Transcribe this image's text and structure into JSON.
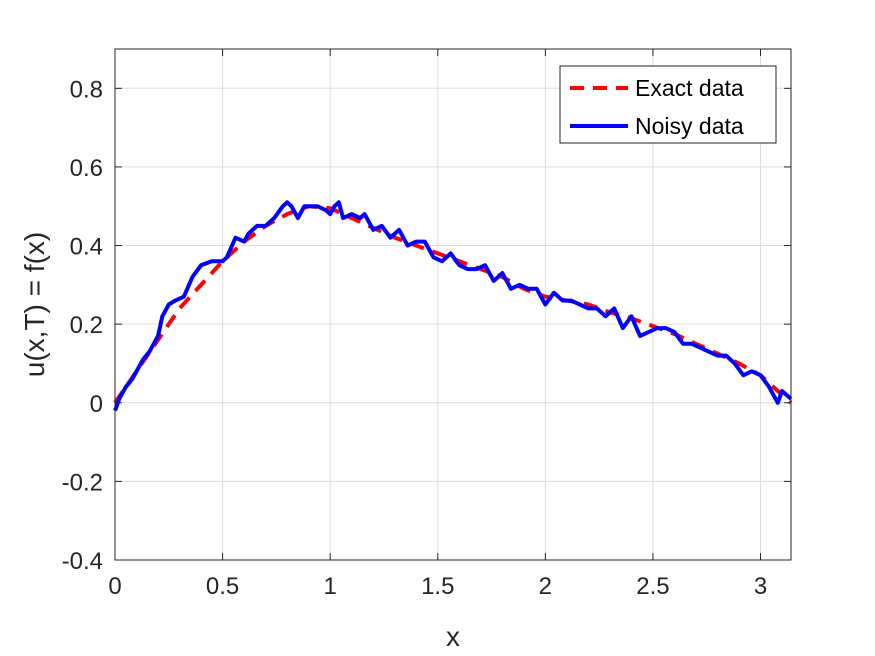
{
  "chart_data": {
    "type": "line",
    "xlabel": "x",
    "ylabel": "u(x,T) = f(x)",
    "xlim": [
      0,
      3.1416
    ],
    "ylim": [
      -0.4,
      0.9
    ],
    "xticks": [
      0,
      0.5,
      1,
      1.5,
      2,
      2.5,
      3
    ],
    "xtick_labels": [
      "0",
      "0.5",
      "1",
      "1.5",
      "2",
      "2.5",
      "3"
    ],
    "yticks": [
      -0.4,
      -0.2,
      0,
      0.2,
      0.4,
      0.6,
      0.8
    ],
    "ytick_labels": [
      "-0.4",
      "-0.2",
      "0",
      "0.2",
      "0.4",
      "0.6",
      "0.8"
    ],
    "grid": true,
    "legend_position": "top-right",
    "colors": {
      "exact": "#ff0000",
      "noisy": "#0000ff",
      "grid": "#dddddd",
      "axis": "#262626"
    },
    "series": [
      {
        "name": "Exact data",
        "style": "dashed",
        "x": [
          0,
          0.05,
          0.1,
          0.15,
          0.2,
          0.25,
          0.3,
          0.4,
          0.5,
          0.6,
          0.7,
          0.8,
          0.9,
          1.0,
          1.1,
          1.2,
          1.3,
          1.4,
          1.5,
          1.6,
          1.7,
          1.8,
          1.9,
          2.0,
          2.1,
          2.2,
          2.3,
          2.4,
          2.5,
          2.6,
          2.7,
          2.8,
          2.9,
          3.0,
          3.1,
          3.1416
        ],
        "y": [
          0,
          0.04,
          0.08,
          0.12,
          0.16,
          0.2,
          0.24,
          0.3,
          0.36,
          0.41,
          0.45,
          0.48,
          0.5,
          0.495,
          0.47,
          0.445,
          0.42,
          0.4,
          0.38,
          0.36,
          0.34,
          0.32,
          0.29,
          0.27,
          0.26,
          0.25,
          0.23,
          0.215,
          0.195,
          0.175,
          0.15,
          0.125,
          0.1,
          0.07,
          0.02,
          0.0
        ]
      },
      {
        "name": "Noisy data",
        "style": "solid",
        "x": [
          0,
          0.02,
          0.05,
          0.08,
          0.1,
          0.13,
          0.16,
          0.2,
          0.22,
          0.25,
          0.28,
          0.32,
          0.36,
          0.4,
          0.45,
          0.5,
          0.52,
          0.56,
          0.6,
          0.62,
          0.66,
          0.7,
          0.74,
          0.78,
          0.8,
          0.82,
          0.85,
          0.88,
          0.9,
          0.94,
          0.98,
          1.0,
          1.02,
          1.04,
          1.06,
          1.1,
          1.14,
          1.16,
          1.2,
          1.24,
          1.28,
          1.32,
          1.36,
          1.4,
          1.44,
          1.48,
          1.52,
          1.56,
          1.6,
          1.64,
          1.68,
          1.72,
          1.76,
          1.8,
          1.84,
          1.88,
          1.92,
          1.96,
          2.0,
          2.04,
          2.08,
          2.12,
          2.16,
          2.2,
          2.24,
          2.28,
          2.32,
          2.36,
          2.4,
          2.44,
          2.48,
          2.52,
          2.56,
          2.6,
          2.64,
          2.68,
          2.72,
          2.76,
          2.8,
          2.84,
          2.88,
          2.92,
          2.96,
          3.0,
          3.04,
          3.06,
          3.08,
          3.1,
          3.1416
        ],
        "y": [
          -0.02,
          0.01,
          0.04,
          0.06,
          0.08,
          0.11,
          0.13,
          0.17,
          0.22,
          0.25,
          0.26,
          0.27,
          0.32,
          0.35,
          0.36,
          0.36,
          0.37,
          0.42,
          0.41,
          0.43,
          0.45,
          0.45,
          0.47,
          0.5,
          0.51,
          0.5,
          0.47,
          0.5,
          0.5,
          0.5,
          0.49,
          0.48,
          0.5,
          0.51,
          0.47,
          0.48,
          0.47,
          0.48,
          0.44,
          0.45,
          0.42,
          0.44,
          0.4,
          0.41,
          0.41,
          0.37,
          0.36,
          0.38,
          0.35,
          0.34,
          0.34,
          0.35,
          0.31,
          0.33,
          0.29,
          0.3,
          0.29,
          0.29,
          0.25,
          0.28,
          0.26,
          0.26,
          0.25,
          0.24,
          0.24,
          0.22,
          0.24,
          0.19,
          0.22,
          0.17,
          0.18,
          0.19,
          0.19,
          0.18,
          0.15,
          0.15,
          0.14,
          0.13,
          0.12,
          0.12,
          0.1,
          0.07,
          0.08,
          0.07,
          0.04,
          0.02,
          0.0,
          0.03,
          0.01
        ]
      }
    ]
  }
}
